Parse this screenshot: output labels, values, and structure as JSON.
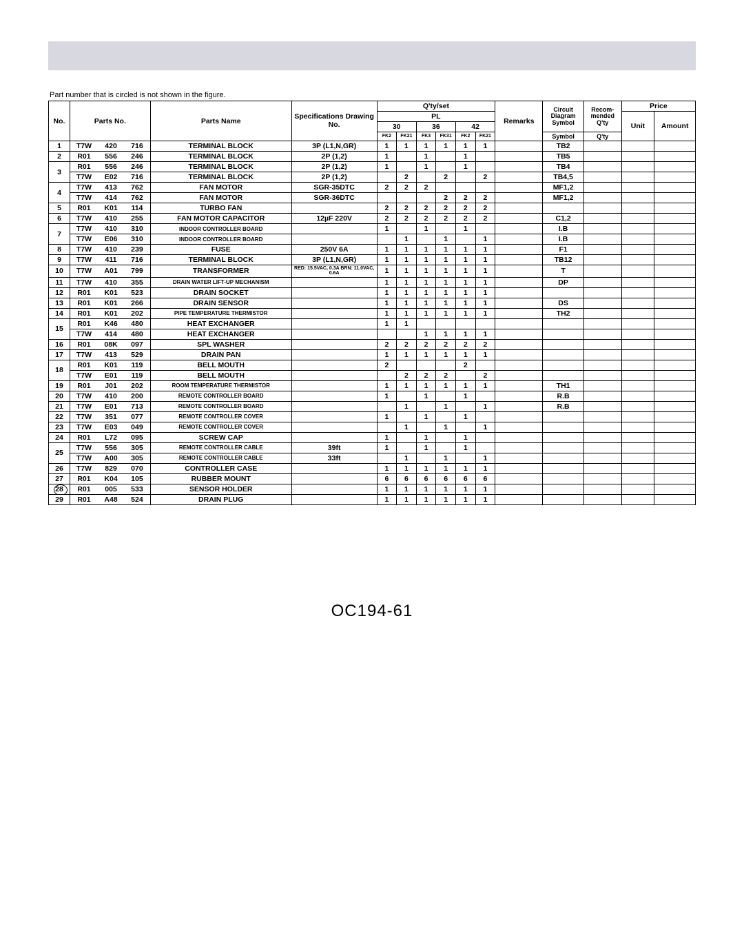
{
  "note_text": "Part number that is circled is not shown in the figure.",
  "footer_text": "OC194-61",
  "headers": {
    "no": "No.",
    "parts_no": "Parts No.",
    "parts_name": "Parts Name",
    "spec": "Specifications Drawing No.",
    "qty_set": "Q'ty/set",
    "pl": "PL",
    "c30": "30",
    "c36": "36",
    "c42": "42",
    "sub": [
      "FK2",
      "FK21",
      "FK3",
      "FK31",
      "FK2",
      "FK21"
    ],
    "remarks": "Remarks",
    "circuit": "Circuit Diagram Symbol",
    "recom": "Recom-mended Q'ty",
    "price": "Price",
    "unit": "Unit",
    "amount": "Amount"
  },
  "rows": [
    {
      "no": "1",
      "p": [
        "T7W",
        "420",
        "716"
      ],
      "name": "TERMINAL BLOCK",
      "spec": "3P (L1,N,GR)",
      "q": [
        "1",
        "1",
        "1",
        "1",
        "1",
        "1"
      ],
      "sym": "TB2"
    },
    {
      "no": "2",
      "p": [
        "R01",
        "556",
        "246"
      ],
      "name": "TERMINAL BLOCK",
      "spec": "2P (1,2)",
      "q": [
        "1",
        "",
        "1",
        "",
        "1",
        ""
      ],
      "sym": "TB5"
    },
    {
      "no": "3",
      "rowspan": 2,
      "p": [
        "R01",
        "556",
        "246"
      ],
      "name": "TERMINAL BLOCK",
      "spec": "2P (1,2)",
      "q": [
        "1",
        "",
        "1",
        "",
        "1",
        ""
      ],
      "sym": "TB4"
    },
    {
      "cont": true,
      "p": [
        "T7W",
        "E02",
        "716"
      ],
      "name": "TERMINAL BLOCK",
      "spec": "2P (1,2)",
      "q": [
        "",
        "2",
        "",
        "2",
        "",
        "2"
      ],
      "sym": "TB4,5"
    },
    {
      "no": "4",
      "rowspan": 2,
      "p": [
        "T7W",
        "413",
        "762"
      ],
      "name": "FAN MOTOR",
      "spec": "SGR-35DTC",
      "q": [
        "2",
        "2",
        "2",
        "",
        "",
        ""
      ],
      "sym": "MF1,2"
    },
    {
      "cont": true,
      "p": [
        "T7W",
        "414",
        "762"
      ],
      "name": "FAN MOTOR",
      "spec": "SGR-36DTC",
      "q": [
        "",
        "",
        "",
        "2",
        "2",
        "2"
      ],
      "sym": "MF1,2"
    },
    {
      "no": "5",
      "p": [
        "R01",
        "K01",
        "114"
      ],
      "name": "TURBO FAN",
      "spec": "",
      "q": [
        "2",
        "2",
        "2",
        "2",
        "2",
        "2"
      ],
      "sym": ""
    },
    {
      "no": "6",
      "p": [
        "T7W",
        "410",
        "255"
      ],
      "name": "FAN MOTOR CAPACITOR",
      "spec": "12µF 220V",
      "q": [
        "2",
        "2",
        "2",
        "2",
        "2",
        "2"
      ],
      "sym": "C1,2"
    },
    {
      "no": "7",
      "rowspan": 2,
      "p": [
        "T7W",
        "410",
        "310"
      ],
      "name": "INDOOR CONTROLLER BOARD",
      "name_small": true,
      "spec": "",
      "q": [
        "1",
        "",
        "1",
        "",
        "1",
        ""
      ],
      "sym": "I.B"
    },
    {
      "cont": true,
      "p": [
        "T7W",
        "E06",
        "310"
      ],
      "name": "INDOOR CONTROLLER BOARD",
      "name_small": true,
      "spec": "",
      "q": [
        "",
        "1",
        "",
        "1",
        "",
        "1"
      ],
      "sym": "I.B"
    },
    {
      "no": "8",
      "p": [
        "T7W",
        "410",
        "239"
      ],
      "name": "FUSE",
      "spec": "250V 6A",
      "q": [
        "1",
        "1",
        "1",
        "1",
        "1",
        "1"
      ],
      "sym": "F1"
    },
    {
      "no": "9",
      "p": [
        "T7W",
        "411",
        "716"
      ],
      "name": "TERMINAL BLOCK",
      "spec": "3P (L1,N,GR)",
      "q": [
        "1",
        "1",
        "1",
        "1",
        "1",
        "1"
      ],
      "sym": "TB12"
    },
    {
      "no": "10",
      "p": [
        "T7W",
        "A01",
        "799"
      ],
      "name": "TRANSFORMER",
      "spec": "RED: 15.5VAC, 0.3A\nBRN: 11.0VAC, 0.6A",
      "spec_tiny": true,
      "q": [
        "1",
        "1",
        "1",
        "1",
        "1",
        "1"
      ],
      "sym": "T"
    },
    {
      "no": "11",
      "p": [
        "T7W",
        "410",
        "355"
      ],
      "name": "DRAIN WATER LIFT-UP MECHANISM",
      "name_small": true,
      "spec": "",
      "q": [
        "1",
        "1",
        "1",
        "1",
        "1",
        "1"
      ],
      "sym": "DP"
    },
    {
      "no": "12",
      "p": [
        "R01",
        "K01",
        "523"
      ],
      "name": "DRAIN SOCKET",
      "spec": "",
      "q": [
        "1",
        "1",
        "1",
        "1",
        "1",
        "1"
      ],
      "sym": ""
    },
    {
      "no": "13",
      "p": [
        "R01",
        "K01",
        "266"
      ],
      "name": "DRAIN SENSOR",
      "spec": "",
      "q": [
        "1",
        "1",
        "1",
        "1",
        "1",
        "1"
      ],
      "sym": "DS"
    },
    {
      "no": "14",
      "p": [
        "R01",
        "K01",
        "202"
      ],
      "name": "PIPE TEMPERATURE THERMISTOR",
      "name_small": true,
      "spec": "",
      "q": [
        "1",
        "1",
        "1",
        "1",
        "1",
        "1"
      ],
      "sym": "TH2"
    },
    {
      "no": "15",
      "rowspan": 2,
      "p": [
        "R01",
        "K46",
        "480"
      ],
      "name": "HEAT EXCHANGER",
      "spec": "",
      "q": [
        "1",
        "1",
        "",
        "",
        "",
        ""
      ],
      "sym": ""
    },
    {
      "cont": true,
      "p": [
        "T7W",
        "414",
        "480"
      ],
      "name": "HEAT EXCHANGER",
      "spec": "",
      "q": [
        "",
        "",
        "1",
        "1",
        "1",
        "1"
      ],
      "sym": ""
    },
    {
      "no": "16",
      "p": [
        "R01",
        "08K",
        "097"
      ],
      "name": "SPL WASHER",
      "spec": "",
      "q": [
        "2",
        "2",
        "2",
        "2",
        "2",
        "2"
      ],
      "sym": ""
    },
    {
      "no": "17",
      "p": [
        "T7W",
        "413",
        "529"
      ],
      "name": "DRAIN PAN",
      "spec": "",
      "q": [
        "1",
        "1",
        "1",
        "1",
        "1",
        "1"
      ],
      "sym": ""
    },
    {
      "no": "18",
      "rowspan": 2,
      "p": [
        "R01",
        "K01",
        "119"
      ],
      "name": "BELL MOUTH",
      "spec": "",
      "q": [
        "2",
        "",
        "",
        "",
        "2",
        ""
      ],
      "sym": ""
    },
    {
      "cont": true,
      "p": [
        "T7W",
        "E01",
        "119"
      ],
      "name": "BELL MOUTH",
      "spec": "",
      "q": [
        "",
        "2",
        "2",
        "2",
        "",
        "2"
      ],
      "sym": ""
    },
    {
      "no": "19",
      "p": [
        "R01",
        "J01",
        "202"
      ],
      "name": "ROOM TEMPERATURE THERMISTOR",
      "name_small": true,
      "spec": "",
      "q": [
        "1",
        "1",
        "1",
        "1",
        "1",
        "1"
      ],
      "sym": "TH1"
    },
    {
      "no": "20",
      "p": [
        "T7W",
        "410",
        "200"
      ],
      "name": "REMOTE CONTROLLER BOARD",
      "name_small": true,
      "spec": "",
      "q": [
        "1",
        "",
        "1",
        "",
        "1",
        ""
      ],
      "sym": "R.B"
    },
    {
      "no": "21",
      "p": [
        "T7W",
        "E01",
        "713"
      ],
      "name": "REMOTE CONTROLLER BOARD",
      "name_small": true,
      "spec": "",
      "q": [
        "",
        "1",
        "",
        "1",
        "",
        "1"
      ],
      "sym": "R.B"
    },
    {
      "no": "22",
      "p": [
        "T7W",
        "351",
        "077"
      ],
      "name": "REMOTE CONTROLLER COVER",
      "name_small": true,
      "spec": "",
      "q": [
        "1",
        "",
        "1",
        "",
        "1",
        ""
      ],
      "sym": ""
    },
    {
      "no": "23",
      "p": [
        "T7W",
        "E03",
        "049"
      ],
      "name": "REMOTE CONTROLLER COVER",
      "name_small": true,
      "spec": "",
      "q": [
        "",
        "1",
        "",
        "1",
        "",
        "1"
      ],
      "sym": ""
    },
    {
      "no": "24",
      "p": [
        "R01",
        "L72",
        "095"
      ],
      "name": "SCREW CAP",
      "spec": "",
      "q": [
        "1",
        "",
        "1",
        "",
        "1",
        ""
      ],
      "sym": ""
    },
    {
      "no": "25",
      "rowspan": 2,
      "p": [
        "T7W",
        "556",
        "305"
      ],
      "name": "REMOTE CONTROLLER CABLE",
      "name_small": true,
      "spec": "39ft",
      "q": [
        "1",
        "",
        "1",
        "",
        "1",
        ""
      ],
      "sym": ""
    },
    {
      "cont": true,
      "p": [
        "T7W",
        "A00",
        "305"
      ],
      "name": "REMOTE CONTROLLER CABLE",
      "name_small": true,
      "spec": "33ft",
      "q": [
        "",
        "1",
        "",
        "1",
        "",
        "1"
      ],
      "sym": ""
    },
    {
      "no": "26",
      "p": [
        "T7W",
        "829",
        "070"
      ],
      "name": "CONTROLLER CASE",
      "spec": "",
      "q": [
        "1",
        "1",
        "1",
        "1",
        "1",
        "1"
      ],
      "sym": ""
    },
    {
      "no": "27",
      "p": [
        "R01",
        "K04",
        "105"
      ],
      "name": "RUBBER MOUNT",
      "spec": "",
      "q": [
        "6",
        "6",
        "6",
        "6",
        "6",
        "6"
      ],
      "sym": ""
    },
    {
      "no": "28",
      "circled": true,
      "p": [
        "R01",
        "005",
        "533"
      ],
      "name": "SENSOR HOLDER",
      "spec": "",
      "q": [
        "1",
        "1",
        "1",
        "1",
        "1",
        "1"
      ],
      "sym": ""
    },
    {
      "no": "29",
      "p": [
        "R01",
        "A48",
        "524"
      ],
      "name": "DRAIN PLUG",
      "spec": "",
      "q": [
        "1",
        "1",
        "1",
        "1",
        "1",
        "1"
      ],
      "sym": ""
    }
  ]
}
